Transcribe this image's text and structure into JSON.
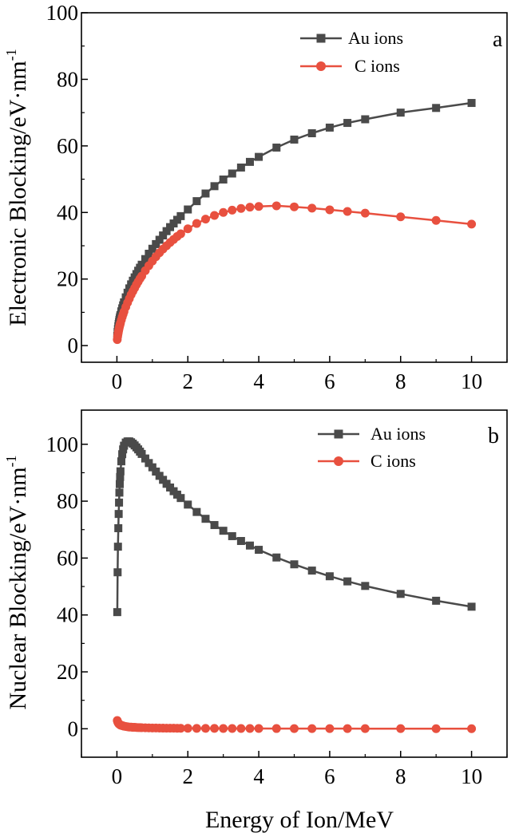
{
  "chart_data": [
    {
      "type": "line",
      "panel_label": "a",
      "xlabel": "",
      "ylabel": "Electronic Blocking/eV·nm",
      "ylabel_sup": "-1",
      "xlim": [
        -1,
        11
      ],
      "ylim": [
        -5,
        100
      ],
      "xticks": [
        0,
        2,
        4,
        6,
        8,
        10
      ],
      "yticks": [
        0,
        20,
        40,
        60,
        80,
        100
      ],
      "grid": false,
      "legend_position": "top-right",
      "series": [
        {
          "name": "Au ions",
          "color": "#4a4a4a",
          "marker": "square",
          "x": [
            0.01,
            0.02,
            0.03,
            0.04,
            0.05,
            0.06,
            0.07,
            0.08,
            0.09,
            0.1,
            0.125,
            0.15,
            0.175,
            0.2,
            0.25,
            0.3,
            0.35,
            0.4,
            0.45,
            0.5,
            0.55,
            0.6,
            0.65,
            0.7,
            0.8,
            0.9,
            1.0,
            1.1,
            1.2,
            1.3,
            1.4,
            1.5,
            1.6,
            1.7,
            1.8,
            2.0,
            2.25,
            2.5,
            2.75,
            3.0,
            3.25,
            3.5,
            3.75,
            4.0,
            4.5,
            5.0,
            5.5,
            6.0,
            6.5,
            7.0,
            8.0,
            9.0,
            10.0
          ],
          "y": [
            2.9,
            4.1,
            5.0,
            5.8,
            6.5,
            7.1,
            7.7,
            8.2,
            8.7,
            9.2,
            10.3,
            11.2,
            12.1,
            13.0,
            14.5,
            15.9,
            17.2,
            18.4,
            19.5,
            20.5,
            21.5,
            22.5,
            23.4,
            24.3,
            26.0,
            27.6,
            29.1,
            30.5,
            31.8,
            33.1,
            34.4,
            35.6,
            36.7,
            37.8,
            38.9,
            40.9,
            43.4,
            45.7,
            47.9,
            49.9,
            51.7,
            53.5,
            55.2,
            56.7,
            59.5,
            61.9,
            63.8,
            65.5,
            66.9,
            68.0,
            70.0,
            71.4,
            72.9
          ]
        },
        {
          "name": "C ions",
          "color": "#e8503f",
          "marker": "circle",
          "x": [
            0.01,
            0.02,
            0.03,
            0.04,
            0.05,
            0.06,
            0.07,
            0.08,
            0.09,
            0.1,
            0.125,
            0.15,
            0.175,
            0.2,
            0.25,
            0.3,
            0.35,
            0.4,
            0.45,
            0.5,
            0.55,
            0.6,
            0.65,
            0.7,
            0.8,
            0.9,
            1.0,
            1.1,
            1.2,
            1.3,
            1.4,
            1.5,
            1.6,
            1.7,
            1.8,
            2.0,
            2.25,
            2.5,
            2.75,
            3.0,
            3.25,
            3.5,
            3.75,
            4.0,
            4.5,
            5.0,
            5.5,
            6.0,
            6.5,
            7.0,
            8.0,
            9.0,
            10.0
          ],
          "y": [
            1.8,
            2.7,
            3.4,
            4.0,
            4.6,
            5.1,
            5.6,
            6.0,
            6.4,
            6.8,
            7.7,
            8.6,
            9.4,
            10.2,
            11.6,
            12.9,
            14.1,
            15.3,
            16.3,
            17.3,
            18.3,
            19.2,
            20.1,
            20.9,
            22.5,
            24.0,
            25.4,
            26.7,
            27.9,
            29.0,
            30.0,
            31.0,
            31.9,
            32.8,
            33.6,
            35.1,
            36.7,
            38.0,
            39.1,
            40.0,
            40.7,
            41.2,
            41.6,
            41.8,
            42.0,
            41.7,
            41.3,
            40.8,
            40.3,
            39.8,
            38.7,
            37.6,
            36.5
          ]
        }
      ]
    },
    {
      "type": "line",
      "panel_label": "b",
      "xlabel": "Energy of Ion/MeV",
      "ylabel": "Nuclear Blocking/eV·nm",
      "ylabel_sup": "-1",
      "xlim": [
        -1,
        11
      ],
      "ylim": [
        -10,
        112
      ],
      "xticks": [
        0,
        2,
        4,
        6,
        8,
        10
      ],
      "yticks": [
        0,
        20,
        40,
        60,
        80,
        100
      ],
      "grid": false,
      "legend_position": "top-right",
      "series": [
        {
          "name": "Au ions",
          "color": "#4a4a4a",
          "marker": "square",
          "x": [
            0.01,
            0.02,
            0.03,
            0.04,
            0.05,
            0.06,
            0.07,
            0.08,
            0.09,
            0.1,
            0.125,
            0.15,
            0.175,
            0.2,
            0.25,
            0.3,
            0.35,
            0.4,
            0.45,
            0.5,
            0.55,
            0.6,
            0.65,
            0.7,
            0.8,
            0.9,
            1.0,
            1.1,
            1.2,
            1.3,
            1.4,
            1.5,
            1.6,
            1.7,
            1.8,
            2.0,
            2.25,
            2.5,
            2.75,
            3.0,
            3.25,
            3.5,
            3.75,
            4.0,
            4.5,
            5.0,
            5.5,
            6.0,
            6.5,
            7.0,
            8.0,
            9.0,
            10.0
          ],
          "y": [
            41.0,
            55.0,
            64.0,
            70.5,
            75.5,
            79.5,
            83.0,
            86.0,
            88.5,
            90.5,
            94.0,
            96.5,
            98.2,
            99.5,
            100.6,
            101.0,
            101.0,
            100.7,
            100.2,
            99.6,
            98.9,
            98.2,
            97.4,
            96.6,
            95.0,
            93.4,
            91.9,
            90.4,
            88.9,
            87.5,
            86.1,
            84.8,
            83.5,
            82.3,
            81.1,
            78.8,
            76.2,
            73.8,
            71.6,
            69.6,
            67.7,
            66.0,
            64.4,
            62.9,
            60.2,
            57.8,
            55.6,
            53.6,
            51.8,
            50.2,
            47.4,
            45.0,
            42.9
          ]
        },
        {
          "name": "C ions",
          "color": "#e8503f",
          "marker": "circle",
          "x": [
            0.01,
            0.02,
            0.03,
            0.04,
            0.05,
            0.06,
            0.07,
            0.08,
            0.09,
            0.1,
            0.125,
            0.15,
            0.175,
            0.2,
            0.25,
            0.3,
            0.35,
            0.4,
            0.45,
            0.5,
            0.55,
            0.6,
            0.65,
            0.7,
            0.8,
            0.9,
            1.0,
            1.1,
            1.2,
            1.3,
            1.4,
            1.5,
            1.6,
            1.7,
            1.8,
            2.0,
            2.25,
            2.5,
            2.75,
            3.0,
            3.25,
            3.5,
            3.75,
            4.0,
            4.5,
            5.0,
            5.5,
            6.0,
            6.5,
            7.0,
            8.0,
            9.0,
            10.0
          ],
          "y": [
            2.9,
            2.5,
            2.2,
            2.0,
            1.8,
            1.7,
            1.6,
            1.5,
            1.4,
            1.3,
            1.2,
            1.1,
            1.0,
            0.9,
            0.8,
            0.7,
            0.6,
            0.6,
            0.5,
            0.5,
            0.45,
            0.42,
            0.4,
            0.37,
            0.33,
            0.3,
            0.28,
            0.26,
            0.24,
            0.22,
            0.21,
            0.2,
            0.19,
            0.18,
            0.17,
            0.16,
            0.14,
            0.13,
            0.12,
            0.11,
            0.1,
            0.1,
            0.09,
            0.09,
            0.08,
            0.07,
            0.07,
            0.06,
            0.06,
            0.05,
            0.05,
            0.04,
            0.04
          ]
        }
      ]
    }
  ]
}
